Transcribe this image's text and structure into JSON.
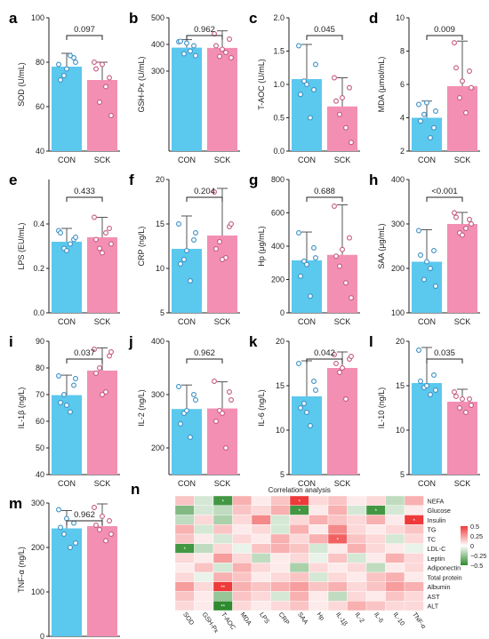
{
  "colors": {
    "con": "#5bc8ee",
    "sck": "#f48fb4",
    "con_dot": "#3a8fc4",
    "sck_dot": "#c4587e",
    "pos": "#ee3a3a",
    "neg": "#2e8b2e"
  },
  "panels": [
    {
      "letter": "a",
      "ylabel": "SOD (U/mL)",
      "ylim": [
        40,
        100
      ],
      "yticks": [
        40,
        60,
        80,
        100
      ],
      "p": "0.097",
      "categories": [
        "CON",
        "SCK"
      ],
      "means": [
        78,
        72
      ],
      "sd": [
        6,
        8
      ],
      "points": [
        [
          79,
          82,
          74,
          83,
          72,
          80,
          77
        ],
        [
          80,
          73,
          62,
          69,
          77,
          56,
          79
        ]
      ]
    },
    {
      "letter": "b",
      "ylabel": "GSH-Px (U/mL)",
      "ylim": [
        0,
        500
      ],
      "yticks": [
        300,
        400,
        500
      ],
      "p": "0.962",
      "categories": [
        "CON",
        "SCK"
      ],
      "means": [
        388,
        387
      ],
      "sd": [
        30,
        64
      ],
      "points": [
        [
          410,
          395,
          365,
          375,
          412,
          358,
          405
        ],
        [
          440,
          420,
          355,
          370,
          395,
          350,
          382
        ]
      ]
    },
    {
      "letter": "c",
      "ylabel": "T-AOC (U/mL)",
      "ylim": [
        0,
        2.0
      ],
      "yticks": [
        0.0,
        0.5,
        1.0,
        1.5,
        2.0
      ],
      "p": "0.045",
      "categories": [
        "CON",
        "SCK"
      ],
      "means": [
        1.08,
        0.67
      ],
      "sd": [
        0.52,
        0.43
      ],
      "points": [
        [
          1.58,
          0.92,
          1.05,
          0.5,
          0.85,
          1.3,
          1.0
        ],
        [
          1.1,
          0.95,
          0.55,
          0.35,
          0.75,
          0.13,
          0.8
        ]
      ]
    },
    {
      "letter": "d",
      "ylabel": "MDA (μmol/mL)",
      "ylim": [
        2,
        10
      ],
      "yticks": [
        2,
        4,
        6,
        8,
        10
      ],
      "p": "0.009",
      "categories": [
        "CON",
        "SCK"
      ],
      "means": [
        4.0,
        5.9
      ],
      "sd": [
        1.0,
        2.7
      ],
      "points": [
        [
          4.8,
          3.4,
          4.2,
          2.8,
          3.8,
          4.4,
          4.9
        ],
        [
          8.5,
          6.8,
          5.2,
          4.3,
          7.0,
          5.8,
          6.2
        ]
      ]
    },
    {
      "letter": "e",
      "ylabel": "LPS (EU/mL)",
      "ylim": [
        0.0,
        0.6
      ],
      "yticks": [
        0.0,
        0.2,
        0.4
      ],
      "p": "0.433",
      "categories": [
        "CON",
        "SCK"
      ],
      "means": [
        0.32,
        0.34
      ],
      "sd": [
        0.06,
        0.09
      ],
      "points": [
        [
          0.37,
          0.33,
          0.29,
          0.31,
          0.36,
          0.34,
          0.28
        ],
        [
          0.43,
          0.38,
          0.29,
          0.36,
          0.33,
          0.31,
          0.27
        ]
      ]
    },
    {
      "letter": "f",
      "ylabel": "CRP (ng/L)",
      "ylim": [
        5,
        20
      ],
      "yticks": [
        5,
        10,
        15,
        20
      ],
      "p": "0.204",
      "categories": [
        "CON",
        "SCK"
      ],
      "means": [
        12.2,
        13.7
      ],
      "sd": [
        3.7,
        5.3
      ],
      "points": [
        [
          15.0,
          13.2,
          11.0,
          8.6,
          10.5,
          14.0,
          12.0
        ],
        [
          18.6,
          14.7,
          13.0,
          11.2,
          12.2,
          15.0,
          11.0
        ]
      ]
    },
    {
      "letter": "g",
      "ylabel": "Hp (μg/mL)",
      "ylim": [
        0,
        800
      ],
      "yticks": [
        0,
        200,
        400,
        600,
        800
      ],
      "p": "0.688",
      "categories": [
        "CON",
        "SCK"
      ],
      "means": [
        315,
        348
      ],
      "sd": [
        170,
        300
      ],
      "points": [
        [
          480,
          390,
          310,
          100,
          220,
          330,
          290
        ],
        [
          640,
          450,
          280,
          180,
          340,
          90,
          380
        ]
      ]
    },
    {
      "letter": "h",
      "ylabel": "SAA (μg/mL)",
      "ylim": [
        100,
        400
      ],
      "yticks": [
        100,
        200,
        300,
        400
      ],
      "p": "<0.001",
      "categories": [
        "CON",
        "SCK"
      ],
      "means": [
        215,
        300
      ],
      "sd": [
        72,
        26
      ],
      "points": [
        [
          285,
          240,
          175,
          200,
          230,
          160,
          215
        ],
        [
          325,
          310,
          280,
          290,
          315,
          300,
          275
        ]
      ]
    },
    {
      "letter": "i",
      "ylabel": "IL-1β (ng/L)",
      "ylim": [
        40,
        90
      ],
      "yticks": [
        40,
        50,
        60,
        70,
        80,
        90
      ],
      "p": "0.037",
      "categories": [
        "CON",
        "SCK"
      ],
      "means": [
        69.8,
        79.0
      ],
      "sd": [
        7.5,
        8.5
      ],
      "points": [
        [
          77.0,
          73.5,
          70.0,
          63.5,
          67.0,
          76.0,
          66.0
        ],
        [
          87.0,
          84.5,
          80.0,
          71.0,
          78.0,
          86.0,
          70.0
        ]
      ]
    },
    {
      "letter": "j",
      "ylabel": "IL-2 (ng/L)",
      "ylim": [
        150,
        400
      ],
      "yticks": [
        200,
        300,
        400
      ],
      "p": "0.962",
      "categories": [
        "CON",
        "SCK"
      ],
      "means": [
        273,
        274
      ],
      "sd": [
        45,
        50
      ],
      "points": [
        [
          315,
          300,
          265,
          220,
          245,
          290,
          270
        ],
        [
          325,
          305,
          270,
          200,
          250,
          290,
          265
        ]
      ]
    },
    {
      "letter": "k",
      "ylabel": "IL-6 (ng/L)",
      "ylim": [
        5,
        20
      ],
      "yticks": [
        5,
        10,
        15,
        20
      ],
      "p": "0.042",
      "categories": [
        "CON",
        "SCK"
      ],
      "means": [
        13.8,
        17.0
      ],
      "sd": [
        4.0,
        1.8
      ],
      "points": [
        [
          17.5,
          15.5,
          13.0,
          10.5,
          12.5,
          14.5,
          12.0
        ],
        [
          18.5,
          18.0,
          16.5,
          13.5,
          17.5,
          18.3,
          17.0
        ]
      ]
    },
    {
      "letter": "l",
      "ylabel": "IL-10 (ng/L)",
      "ylim": [
        5,
        20
      ],
      "yticks": [
        5,
        10,
        15,
        20
      ],
      "p": "0.035",
      "categories": [
        "CON",
        "SCK"
      ],
      "means": [
        15.3,
        13.2
      ],
      "sd": [
        4.0,
        1.4
      ],
      "points": [
        [
          19.0,
          16.2,
          14.8,
          14.0,
          15.5,
          14.5,
          15.0
        ],
        [
          14.3,
          13.5,
          12.5,
          12.0,
          13.8,
          12.8,
          13.5
        ]
      ]
    },
    {
      "letter": "m",
      "ylabel": "TNF-α (ng/L)",
      "ylim": [
        0,
        300
      ],
      "yticks": [
        0,
        100,
        200,
        300
      ],
      "p": "0.962",
      "categories": [
        "CON",
        "SCK"
      ],
      "means": [
        243,
        248
      ],
      "sd": [
        40,
        50
      ],
      "points": [
        [
          285,
          255,
          230,
          200,
          245,
          210,
          265
        ],
        [
          290,
          260,
          240,
          215,
          250,
          230,
          270
        ]
      ]
    }
  ],
  "heatmap": {
    "letter": "n",
    "title": "Correlation analysis",
    "rows": [
      "NEFA",
      "Glucose",
      "Insulin",
      "TG",
      "TC",
      "LDL-C",
      "Leptin",
      "Adiponectin",
      "Total protein",
      "Albumin",
      "AST",
      "ALT"
    ],
    "cols": [
      "SOD",
      "GSH-Px",
      "T-AOC",
      "MDA",
      "LPS",
      "CRP",
      "SAA",
      "Hp",
      "IL-1β",
      "IL-2",
      "IL-6",
      "IL-10",
      "TNF-α"
    ],
    "legend_ticks": [
      "0.5",
      "0.25",
      "0",
      "−0.25",
      "−0.5"
    ],
    "values": [
      [
        0.15,
        -0.1,
        -0.45,
        0.2,
        0.05,
        0.15,
        0.5,
        0.1,
        0.15,
        0.05,
        0.1,
        -0.15,
        0.2
      ],
      [
        -0.3,
        -0.1,
        -0.15,
        0.15,
        0.1,
        0.2,
        -0.45,
        0.05,
        0.2,
        -0.1,
        -0.45,
        -0.1,
        0.05
      ],
      [
        -0.15,
        0.1,
        -0.2,
        0.1,
        0.3,
        -0.1,
        0.1,
        0.2,
        0.15,
        0.1,
        0.2,
        0.05,
        0.5
      ],
      [
        0.2,
        -0.1,
        0.15,
        0.05,
        0.1,
        -0.1,
        0.2,
        0.05,
        0.3,
        0.1,
        0.05,
        0.1,
        0.15
      ],
      [
        0.15,
        0.05,
        -0.1,
        0.1,
        0.05,
        0.2,
        0.1,
        0.2,
        0.4,
        0.15,
        0.1,
        -0.1,
        0.1
      ],
      [
        -0.45,
        -0.15,
        0.1,
        -0.05,
        0.15,
        0.2,
        0.15,
        -0.1,
        0.05,
        0.2,
        0.1,
        0.05,
        -0.05
      ],
      [
        0.1,
        0.05,
        0.25,
        0.1,
        -0.15,
        0.05,
        0.1,
        -0.05,
        0.15,
        -0.1,
        0.05,
        0.2,
        0.1
      ],
      [
        0.05,
        0.15,
        -0.1,
        0.2,
        0.1,
        0.05,
        -0.2,
        0.1,
        0.05,
        0.1,
        -0.15,
        0.05,
        0.1
      ],
      [
        0.1,
        -0.05,
        0.2,
        0.15,
        0.05,
        0.1,
        0.15,
        -0.1,
        0.1,
        0.05,
        0.15,
        0.2,
        0.05
      ],
      [
        0.25,
        0.1,
        0.5,
        0.2,
        0.15,
        0.2,
        0.25,
        0.15,
        0.2,
        0.1,
        0.15,
        0.25,
        0.2
      ],
      [
        0.15,
        0.05,
        -0.25,
        0.15,
        0.1,
        -0.1,
        0.2,
        0.05,
        -0.15,
        0.1,
        0.05,
        0.15,
        0.1
      ],
      [
        0.1,
        0.05,
        -0.5,
        0.1,
        0.05,
        0.1,
        0.15,
        0.05,
        0.1,
        0.2,
        0.15,
        0.1,
        0.1
      ]
    ],
    "stars": [
      {
        "row": 0,
        "col": 2,
        "text": "*"
      },
      {
        "row": 0,
        "col": 6,
        "text": "*"
      },
      {
        "row": 1,
        "col": 6,
        "text": "*"
      },
      {
        "row": 1,
        "col": 10,
        "text": "*"
      },
      {
        "row": 2,
        "col": 12,
        "text": "*"
      },
      {
        "row": 4,
        "col": 8,
        "text": "*"
      },
      {
        "row": 5,
        "col": 0,
        "text": "*"
      },
      {
        "row": 9,
        "col": 2,
        "text": "**"
      },
      {
        "row": 11,
        "col": 2,
        "text": "**"
      }
    ]
  }
}
